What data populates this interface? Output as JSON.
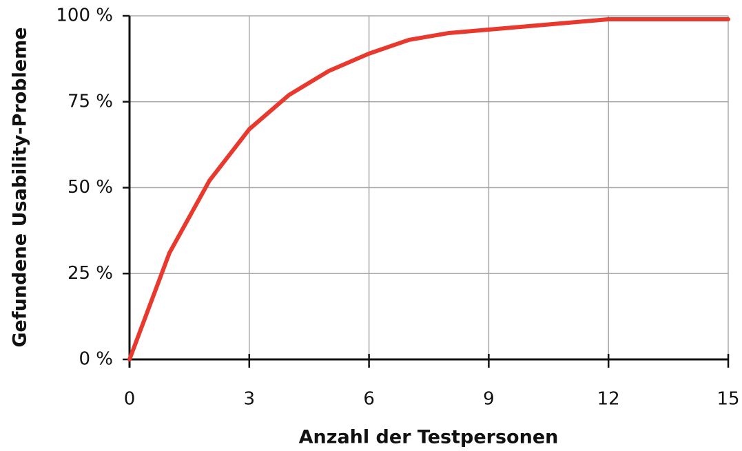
{
  "chart_data": {
    "type": "line",
    "x_label": "Anzahl der Testpersonen",
    "y_label": "Gefundene Usability-Probleme",
    "x": [
      0,
      1,
      2,
      3,
      4,
      5,
      6,
      7,
      8,
      9,
      10,
      11,
      12,
      13,
      14,
      15
    ],
    "values": [
      0,
      31,
      52,
      67,
      77,
      84,
      89,
      93,
      95,
      96,
      97,
      98,
      99,
      99,
      99,
      99
    ],
    "color": "#e8392f",
    "xlim": [
      0,
      15
    ],
    "xticks": [
      0,
      3,
      6,
      9,
      12,
      15
    ],
    "ylim": [
      0,
      100
    ],
    "yticks": [
      {
        "value": 0,
        "label": "0 %"
      },
      {
        "value": 25,
        "label": "25 %"
      },
      {
        "value": 50,
        "label": "50 %"
      },
      {
        "value": 75,
        "label": "75 %"
      },
      {
        "value": 100,
        "label": "100 %"
      }
    ],
    "grid": true
  }
}
